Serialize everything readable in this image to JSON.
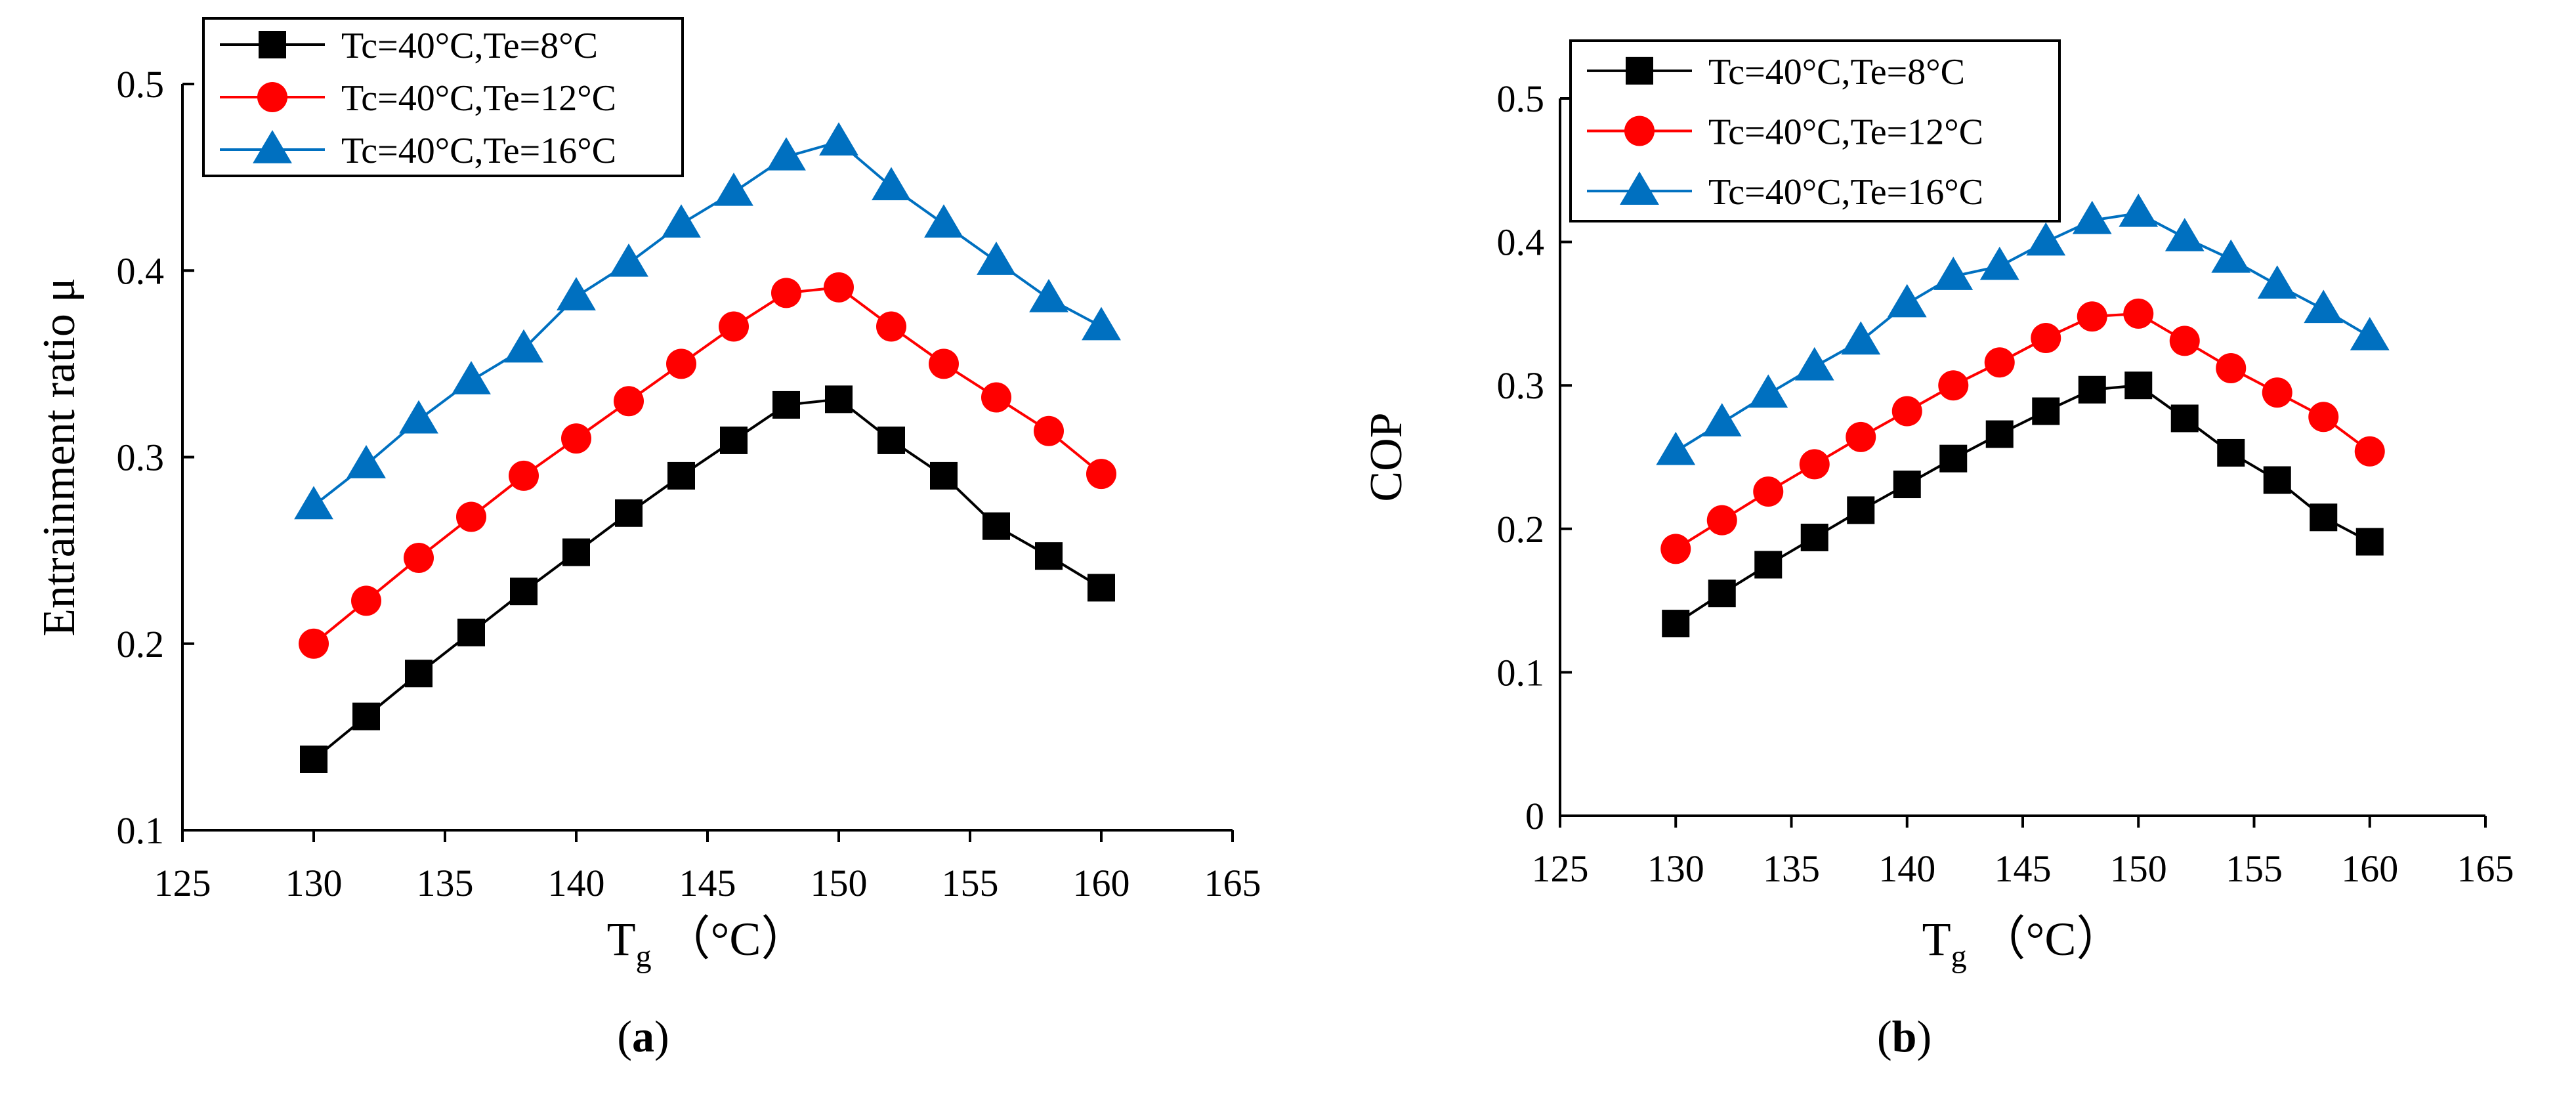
{
  "chart_data": [
    {
      "type": "line",
      "id": "a",
      "caption": "a",
      "xlabel_main": "T",
      "xlabel_sub": "g",
      "xlabel_unit": "（°C）",
      "ylabel": "Entrainment ratio μ",
      "xlim": [
        125,
        165
      ],
      "ylim": [
        0.1,
        0.5
      ],
      "xticks": [
        125,
        130,
        135,
        140,
        145,
        150,
        155,
        160,
        165
      ],
      "xtick_labels": [
        "125",
        "130",
        "135",
        "140",
        "145",
        "150",
        "155",
        "160",
        "165"
      ],
      "yticks": [
        0.1,
        0.2,
        0.3,
        0.4,
        0.5
      ],
      "ytick_labels": [
        "0.1",
        "0.2",
        "0.3",
        "0.4",
        "0.5"
      ],
      "grid": false,
      "legend": "top-left",
      "x": [
        130,
        132,
        134,
        136,
        138,
        140,
        142,
        144,
        146,
        148,
        150,
        152,
        154,
        156,
        158,
        160
      ],
      "series": [
        {
          "name": "Tc=40°C,Te=8°C",
          "color": "#000000",
          "marker": "square",
          "values": [
            0.138,
            0.161,
            0.184,
            0.206,
            0.228,
            0.249,
            0.27,
            0.29,
            0.309,
            0.328,
            0.331,
            0.309,
            0.29,
            0.263,
            0.247,
            0.23
          ]
        },
        {
          "name": "Tc=40°C,Te=12°C",
          "color": "#FF0000",
          "marker": "circle",
          "values": [
            0.2,
            0.223,
            0.246,
            0.268,
            0.29,
            0.31,
            0.33,
            0.35,
            0.37,
            0.388,
            0.391,
            0.37,
            0.35,
            0.332,
            0.314,
            0.291
          ]
        },
        {
          "name": "Tc=40°C,Te=16°C",
          "color": "#0070C0",
          "marker": "triangle",
          "values": [
            0.274,
            0.296,
            0.32,
            0.341,
            0.358,
            0.386,
            0.404,
            0.425,
            0.442,
            0.461,
            0.469,
            0.445,
            0.425,
            0.405,
            0.385,
            0.37
          ]
        }
      ]
    },
    {
      "type": "line",
      "id": "b",
      "caption": "b",
      "xlabel_main": "T",
      "xlabel_sub": "g",
      "xlabel_unit": "（°C）",
      "ylabel": "COP",
      "xlim": [
        125,
        165
      ],
      "ylim": [
        0,
        0.5
      ],
      "xticks": [
        125,
        130,
        135,
        140,
        145,
        150,
        155,
        160,
        165
      ],
      "xtick_labels": [
        "125",
        "130",
        "135",
        "140",
        "145",
        "150",
        "155",
        "160",
        "165"
      ],
      "yticks": [
        0,
        0.1,
        0.2,
        0.3,
        0.4,
        0.5
      ],
      "ytick_labels": [
        "0",
        "0.1",
        "0.2",
        "0.3",
        "0.4",
        "0.5"
      ],
      "grid": false,
      "legend": "top-left",
      "x": [
        130,
        132,
        134,
        136,
        138,
        140,
        142,
        144,
        146,
        148,
        150,
        152,
        154,
        156,
        158,
        160
      ],
      "series": [
        {
          "name": "Tc=40°C,Te=8°C",
          "color": "#000000",
          "marker": "square",
          "values": [
            0.134,
            0.155,
            0.175,
            0.194,
            0.213,
            0.231,
            0.249,
            0.266,
            0.282,
            0.297,
            0.3,
            0.277,
            0.253,
            0.234,
            0.208,
            0.191
          ]
        },
        {
          "name": "Tc=40°C,Te=12°C",
          "color": "#FF0000",
          "marker": "circle",
          "values": [
            0.186,
            0.206,
            0.226,
            0.245,
            0.264,
            0.282,
            0.3,
            0.316,
            0.333,
            0.348,
            0.35,
            0.331,
            0.312,
            0.295,
            0.278,
            0.254
          ]
        },
        {
          "name": "Tc=40°C,Te=16°C",
          "color": "#0070C0",
          "marker": "triangle",
          "values": [
            0.254,
            0.274,
            0.294,
            0.313,
            0.331,
            0.357,
            0.376,
            0.383,
            0.4,
            0.415,
            0.42,
            0.403,
            0.388,
            0.37,
            0.353,
            0.334
          ]
        }
      ]
    }
  ]
}
